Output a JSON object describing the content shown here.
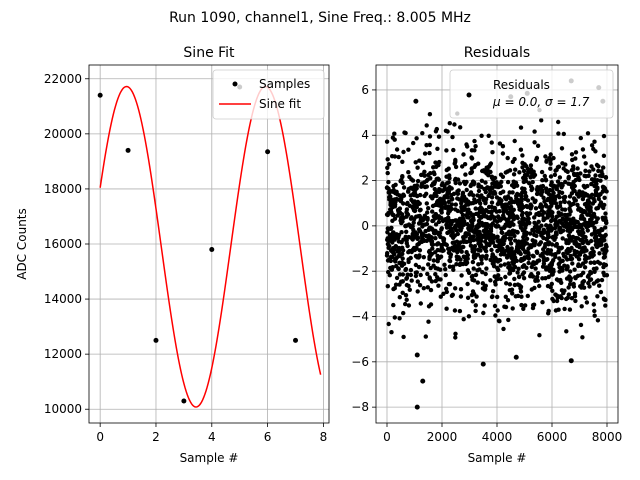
{
  "suptitle": "Run 1090, channel1, Sine Freq.: 8.005 MHz",
  "chart_data": [
    {
      "type": "line",
      "title": "Sine Fit",
      "xlabel": "Sample #",
      "ylabel": "ADC Counts",
      "xlim": [
        -0.4,
        8.2
      ],
      "ylim": [
        9500,
        22500
      ],
      "xticks": [
        0,
        2,
        4,
        6,
        8
      ],
      "yticks": [
        10000,
        12000,
        14000,
        16000,
        18000,
        20000,
        22000
      ],
      "grid": true,
      "legend_position": "top-right",
      "series": [
        {
          "name": "Samples",
          "kind": "scatter",
          "color": "#000000",
          "x": [
            0,
            1,
            2,
            3,
            4,
            5,
            6,
            7
          ],
          "y": [
            21400,
            19400,
            12500,
            10300,
            15800,
            21700,
            19350,
            12500
          ]
        },
        {
          "name": "Sine fit",
          "kind": "line",
          "color": "#ff0000",
          "model": {
            "offset": 15900,
            "amplitude": 5820,
            "frequency_cycles_per_sample": 0.2009,
            "phase_cycles": 0.19,
            "x_range": [
              0,
              7.9
            ]
          }
        }
      ]
    },
    {
      "type": "scatter",
      "title": "Residuals",
      "xlabel": "Sample #",
      "ylabel": "",
      "xlim": [
        -400,
        8400
      ],
      "ylim": [
        -8.7,
        7.1
      ],
      "xticks": [
        0,
        2000,
        4000,
        6000,
        8000
      ],
      "yticks": [
        -8,
        -6,
        -4,
        -2,
        0,
        2,
        4,
        6
      ],
      "grid": true,
      "legend_position": "top-right",
      "series": [
        {
          "name": "Residuals",
          "kind": "scatter",
          "color": "#000000",
          "stats_label": "μ = 0.0, σ = 1.7",
          "x_range": [
            0,
            8000
          ],
          "mean": 0.0,
          "std": 1.7,
          "outliers": [
            {
              "x": 1100,
              "y": -8.0
            },
            {
              "x": 1300,
              "y": -6.85
            },
            {
              "x": 3500,
              "y": -6.1
            },
            {
              "x": 6700,
              "y": -5.95
            },
            {
              "x": 1100,
              "y": -5.7
            },
            {
              "x": 4700,
              "y": -5.8
            },
            {
              "x": 6700,
              "y": 6.4
            },
            {
              "x": 7700,
              "y": 6.1
            },
            {
              "x": 1050,
              "y": 5.5
            },
            {
              "x": 4500,
              "y": 5.7
            },
            {
              "x": 5100,
              "y": 5.85
            },
            {
              "x": 7850,
              "y": 5.5
            }
          ]
        }
      ]
    }
  ]
}
